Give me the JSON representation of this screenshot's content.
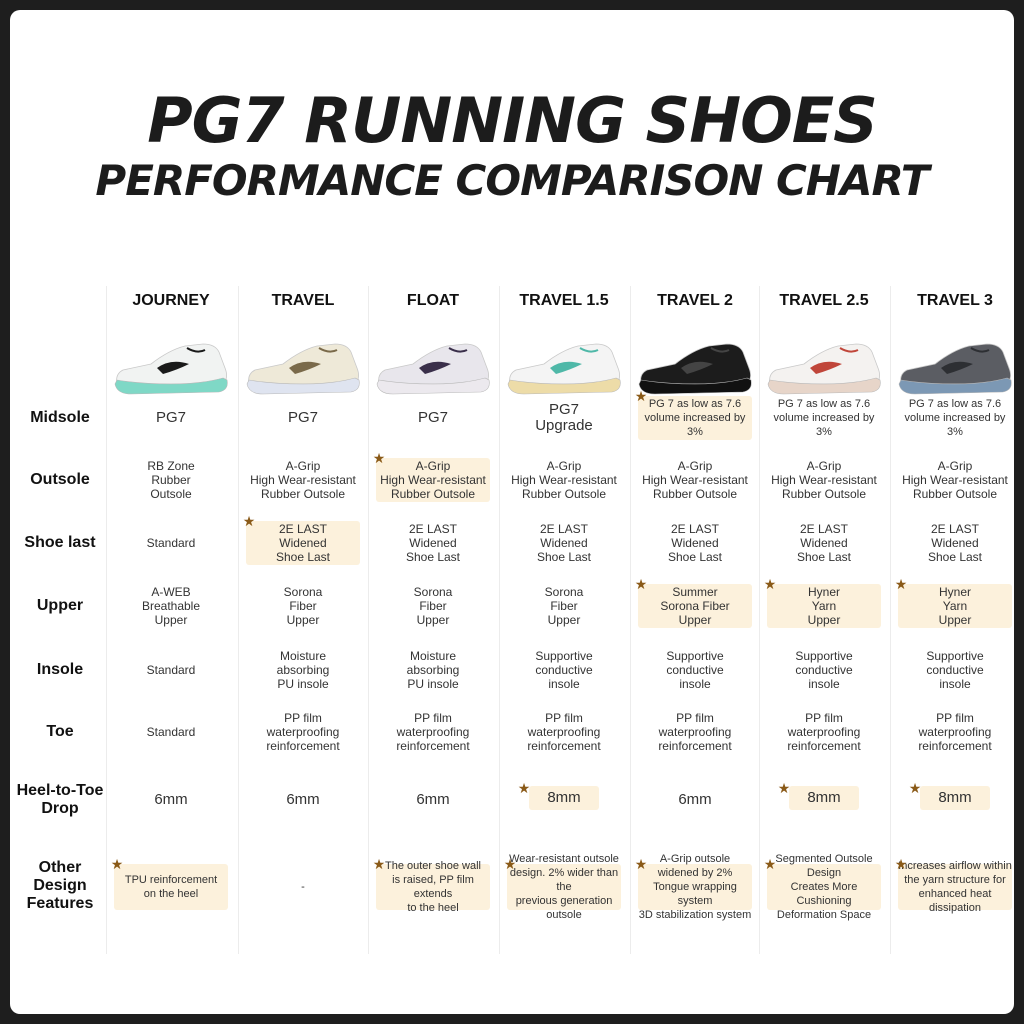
{
  "title": "PG7 RUNNING SHOES",
  "subtitle": "PERFORMANCE COMPARISON CHART",
  "models": [
    "JOURNEY",
    "TRAVEL",
    "FLOAT",
    "TRAVEL 1.5",
    "TRAVEL 2",
    "TRAVEL 2.5",
    "TRAVEL 3"
  ],
  "shoe_colors": [
    {
      "upper": "#f1f3f2",
      "sole": "#7fd8c6",
      "accent": "#1a1a1a"
    },
    {
      "upper": "#eee9d8",
      "sole": "#dfe4f0",
      "accent": "#7a6a4a"
    },
    {
      "upper": "#e8e6ec",
      "sole": "#ece9ee",
      "accent": "#3a2f4a"
    },
    {
      "upper": "#f4f4f4",
      "sole": "#eddca8",
      "accent": "#4fb8a8"
    },
    {
      "upper": "#1c1c1c",
      "sole": "#111111",
      "accent": "#444444"
    },
    {
      "upper": "#f4f2f0",
      "sole": "#e7d5c9",
      "accent": "#c0463a"
    },
    {
      "upper": "#5b5d63",
      "sole": "#7c98b4",
      "accent": "#2d2f33"
    }
  ],
  "rows": {
    "midsole": {
      "label": "Midsole",
      "cells": [
        "PG7",
        "PG7",
        "PG7",
        "PG7\nUpgrade",
        "PG 7 as low as 7.6\nvolume increased by 3%",
        "PG 7 as low as 7.6\nvolume increased by 3%",
        "PG 7 as low as 7.6\nvolume increased by 3%"
      ]
    },
    "outsole": {
      "label": "Outsole",
      "cells": [
        "RB Zone\nRubber\nOutsole",
        "A-Grip\nHigh Wear-resistant\nRubber Outsole",
        "A-Grip\nHigh Wear-resistant\nRubber Outsole",
        "A-Grip\nHigh Wear-resistant\nRubber Outsole",
        "A-Grip\nHigh Wear-resistant\nRubber Outsole",
        "A-Grip\nHigh Wear-resistant\nRubber Outsole",
        "A-Grip\nHigh Wear-resistant\nRubber Outsole"
      ]
    },
    "shoe_last": {
      "label": "Shoe last",
      "cells": [
        "Standard",
        "2E LAST\nWidened\nShoe Last",
        "2E LAST\nWidened\nShoe Last",
        "2E LAST\nWidened\nShoe Last",
        "2E LAST\nWidened\nShoe Last",
        "2E LAST\nWidened\nShoe Last",
        "2E LAST\nWidened\nShoe Last"
      ]
    },
    "upper": {
      "label": "Upper",
      "cells": [
        "A-WEB\nBreathable\nUpper",
        "Sorona\nFiber\nUpper",
        "Sorona\nFiber\nUpper",
        "Sorona\nFiber\nUpper",
        "Summer\nSorona Fiber\nUpper",
        "Hyner\nYarn\nUpper",
        "Hyner\nYarn\nUpper"
      ]
    },
    "insole": {
      "label": "Insole",
      "cells": [
        "Standard",
        "Moisture\nabsorbing\nPU insole",
        "Moisture\nabsorbing\nPU insole",
        "Supportive\nconductive\ninsole",
        "Supportive\nconductive\ninsole",
        "Supportive\nconductive\ninsole",
        "Supportive\nconductive\ninsole"
      ]
    },
    "toe": {
      "label": "Toe",
      "cells": [
        "Standard",
        "PP film\nwaterproofing\nreinforcement",
        "PP film\nwaterproofing\nreinforcement",
        "PP film\nwaterproofing\nreinforcement",
        "PP film\nwaterproofing\nreinforcement",
        "PP film\nwaterproofing\nreinforcement",
        "PP film\nwaterproofing\nreinforcement"
      ]
    },
    "drop": {
      "label": "Heel-to-Toe\nDrop",
      "cells": [
        "6mm",
        "6mm",
        "6mm",
        "8mm",
        "6mm",
        "8mm",
        "8mm"
      ]
    },
    "other": {
      "label": "Other Design\nFeatures",
      "cells": [
        "TPU reinforcement\non the heel",
        "-",
        "The outer shoe wall\nis raised, PP film extends\nto the heel",
        "Wear-resistant outsole\ndesign. 2% wider than the\nprevious generation outsole",
        "A-Grip outsole widened by 2%\nTongue wrapping system\n3D stabilization system",
        "Segmented Outsole Design\nCreates More Cushioning\nDeformation Space",
        "Increases airflow within\nthe yarn structure for\nenhanced heat dissipation"
      ]
    }
  }
}
